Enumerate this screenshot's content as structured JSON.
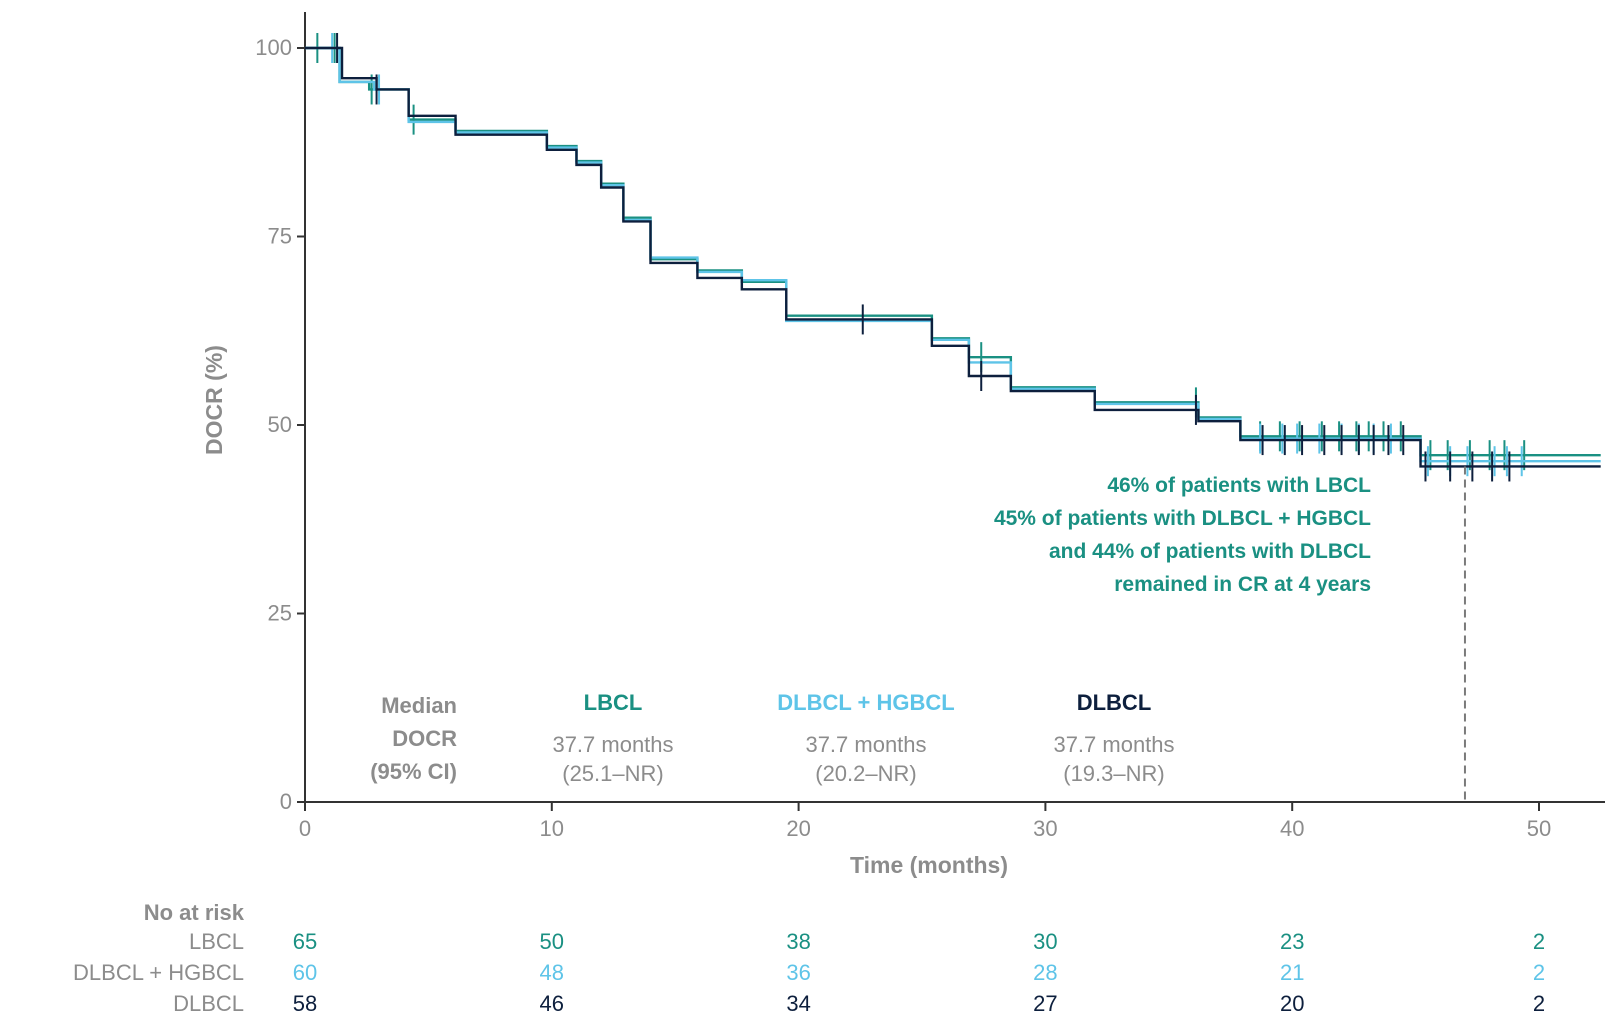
{
  "chart_data": {
    "type": "line",
    "subtype": "kaplan-meier step",
    "xlabel": "Time (months)",
    "ylabel": "DOCR (%)",
    "xlim": [
      0,
      52.5
    ],
    "ylim": [
      0,
      100
    ],
    "xticks": [
      0,
      10,
      20,
      30,
      40,
      50
    ],
    "yticks": [
      0,
      25,
      50,
      75,
      100
    ],
    "grid": false,
    "legend": "none",
    "series": [
      {
        "name": "LBCL",
        "color": "#1a9082",
        "x": [
          0,
          1.4,
          2.6,
          4.2,
          6.1,
          9.8,
          11,
          12,
          12.9,
          14,
          15.9,
          17.7,
          19.5,
          25.4,
          26.9,
          28.6,
          32,
          36.2,
          37.9,
          45.2,
          52.5
        ],
        "y": [
          100,
          95.5,
          94.5,
          90.5,
          89,
          87,
          85,
          82,
          77.5,
          72,
          70.5,
          69,
          64.5,
          61.5,
          59,
          55,
          53,
          51,
          48.5,
          46,
          46
        ],
        "censor_x": [
          0.5,
          1.2,
          2.7,
          4.4,
          27.4,
          36.1,
          38.7,
          39.5,
          40.3,
          41.2,
          41.9,
          42.6,
          43.1,
          43.7,
          44.4,
          45.6,
          46.3,
          47.2,
          48,
          48.6,
          49.4
        ]
      },
      {
        "name": "DLBCL + HGBCL",
        "color": "#5ec4e8",
        "x": [
          0,
          1.4,
          2.8,
          4.2,
          6.1,
          9.8,
          11,
          12,
          12.9,
          14,
          15.9,
          17.7,
          19.5,
          25.4,
          26.9,
          28.6,
          32,
          36.2,
          37.9,
          45.2,
          52.5
        ],
        "y": [
          100,
          95.5,
          94.5,
          90.2,
          88.8,
          86.8,
          84.8,
          81.8,
          77.2,
          72.2,
          70.3,
          69.2,
          63.8,
          61.3,
          58.3,
          54.8,
          52.8,
          50.8,
          48.2,
          45.2,
          45.2
        ],
        "censor_x": [
          1.1,
          3.0,
          38.7,
          39.6,
          40.2,
          41.1,
          42.0,
          42.7,
          43.3,
          44.0,
          45.5,
          46.4,
          47.1,
          48.2,
          48.7,
          49.3
        ]
      },
      {
        "name": "DLBCL",
        "color": "#0d1f3d",
        "x": [
          0,
          1.5,
          2.9,
          4.2,
          6.1,
          9.8,
          11,
          12,
          12.9,
          14,
          15.9,
          17.7,
          19.5,
          25.4,
          26.9,
          28.6,
          32,
          36.2,
          37.9,
          45.2,
          52.5
        ],
        "y": [
          100,
          96,
          94.5,
          91,
          88.5,
          86.5,
          84.5,
          81.5,
          77,
          71.5,
          69.5,
          68,
          64,
          60.5,
          56.5,
          54.5,
          52,
          50.5,
          48,
          44.5,
          44.5
        ],
        "censor_x": [
          1.3,
          2.9,
          22.6,
          27.4,
          36.1,
          38.8,
          39.7,
          40.4,
          41.3,
          42.0,
          42.7,
          43.3,
          43.9,
          44.5,
          45.4,
          46.4,
          47.3,
          48.1,
          48.8
        ]
      }
    ],
    "reference_line": {
      "x": 47,
      "y_from": 0,
      "y_to": 44.5,
      "style": "dashed"
    },
    "annotation": {
      "lines": [
        "46% of patients with LBCL",
        "45% of patients with DLBCL + HGBCL",
        "and 44% of patients with DLBCL",
        "remained in CR at 4 years"
      ],
      "color": "#1a9082"
    },
    "median": {
      "header_lines": [
        "Median",
        "DOCR",
        "(95% CI)"
      ],
      "groups": [
        {
          "name": "LBCL",
          "color": "#1a9082",
          "value": "37.7 months",
          "ci": "(25.1–NR)"
        },
        {
          "name": "DLBCL + HGBCL",
          "color": "#5ec4e8",
          "value": "37.7 months",
          "ci": "(20.2–NR)"
        },
        {
          "name": "DLBCL",
          "color": "#0d1f3d",
          "value": "37.7 months",
          "ci": "(19.3–NR)"
        }
      ]
    },
    "at_risk": {
      "title": "No at risk",
      "timepoints": [
        0,
        10,
        20,
        30,
        40,
        50
      ],
      "rows": [
        {
          "label": "LBCL",
          "color": "#1a9082",
          "values": [
            65,
            50,
            38,
            30,
            23,
            2
          ]
        },
        {
          "label": "DLBCL + HGBCL",
          "color": "#5ec4e8",
          "values": [
            60,
            48,
            36,
            28,
            21,
            2
          ]
        },
        {
          "label": "DLBCL",
          "color": "#0d1f3d",
          "values": [
            58,
            46,
            34,
            27,
            20,
            2
          ]
        }
      ]
    }
  }
}
